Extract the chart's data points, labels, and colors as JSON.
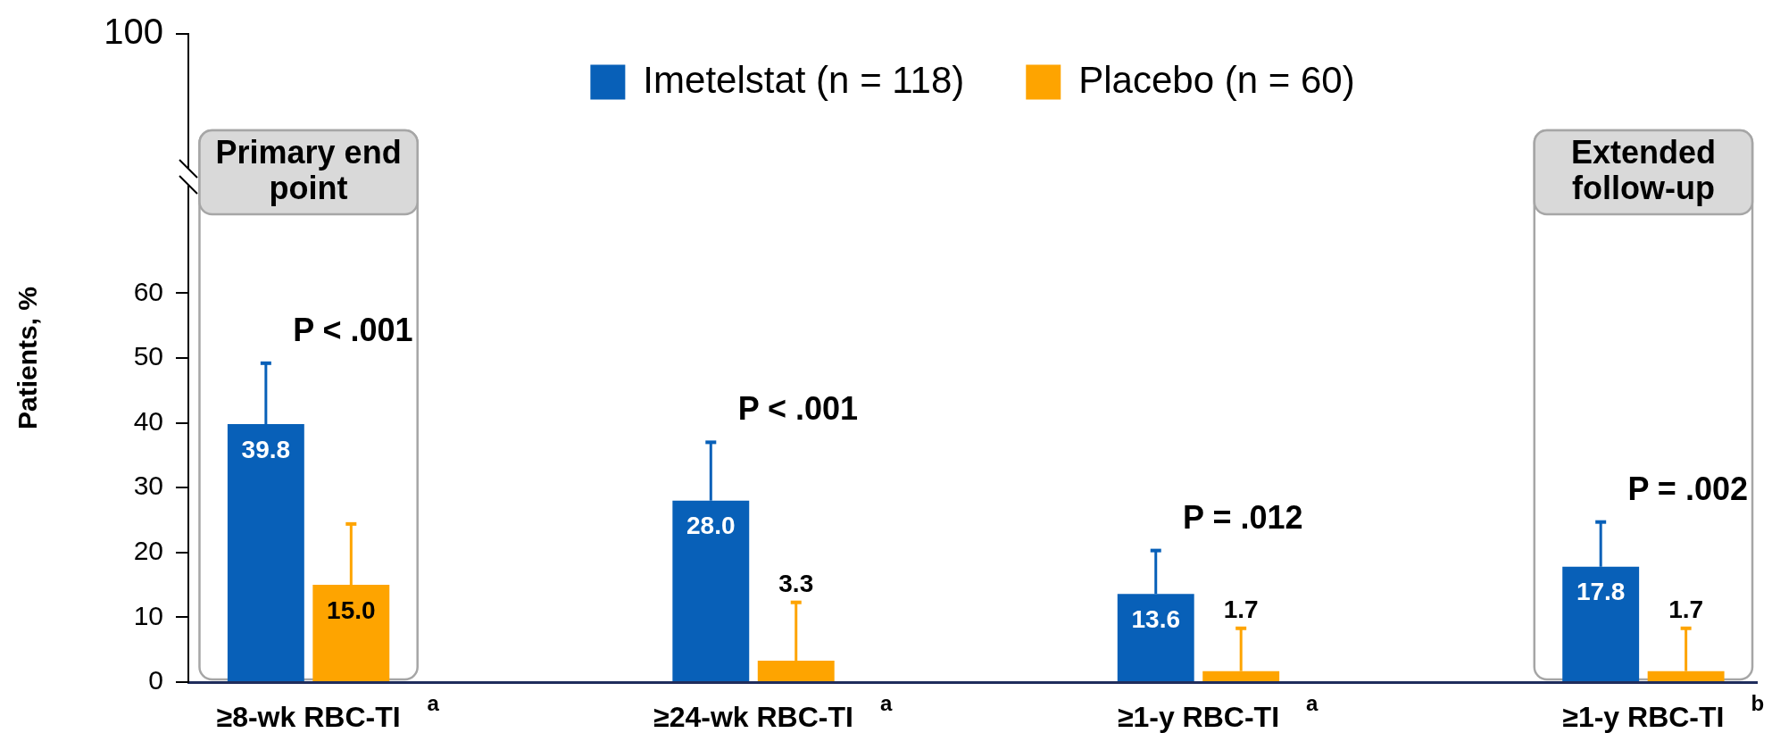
{
  "chart_data": {
    "type": "bar",
    "legend": "top",
    "ylabel": "Patients, %",
    "categories": [
      "≥8-wk RBC-TI$^{a}$",
      "≥24-wk RBC-TI$^{a}$",
      "≥1-y RBC-TI$^{a}$",
      "≥1-y RBC-TI$^{b}$"
    ],
    "series": [
      {
        "name": "Imetelstat (n = 118)",
        "color": "#0860b8",
        "values": [
          39.8,
          28.0,
          13.6,
          17.8
        ],
        "value_labels": [
          "39.8",
          "28.0",
          "13.6",
          "17.8"
        ],
        "errors": [
          [
            39.8,
            49.2
          ],
          [
            28.0,
            37.0
          ],
          [
            13.6,
            20.3
          ],
          [
            17.8,
            24.7
          ]
        ]
      },
      {
        "name": "Placebo (n = 60)",
        "color": "#fea400",
        "values": [
          15.0,
          3.3,
          1.7,
          1.7
        ],
        "value_labels": [
          "15.0",
          "3.3",
          "1.7",
          "1.7"
        ],
        "errors": [
          [
            15.0,
            24.4
          ],
          [
            3.3,
            12.3
          ],
          [
            1.7,
            8.3
          ],
          [
            1.7,
            8.3
          ]
        ]
      }
    ],
    "ylim": [
      0,
      100
    ],
    "yticks": [
      0,
      10,
      20,
      30,
      40,
      50,
      60,
      100
    ],
    "bands": [
      {
        "axis": "x",
        "from": "≥8-wk RBC-TI$^{a}$",
        "to": "≥8-wk RBC-TI$^{a}$",
        "label": "Primary end point",
        "color": "#d9d9d9"
      },
      {
        "axis": "x",
        "from": "≥1-y RBC-TI$^{b}$",
        "to": "≥1-y RBC-TI$^{b}$",
        "label": "Extended follow-up",
        "color": "#d9d9d9"
      }
    ],
    "annotations": [
      "P < .001",
      "P < .001",
      "P = .012",
      "P = .002"
    ]
  }
}
